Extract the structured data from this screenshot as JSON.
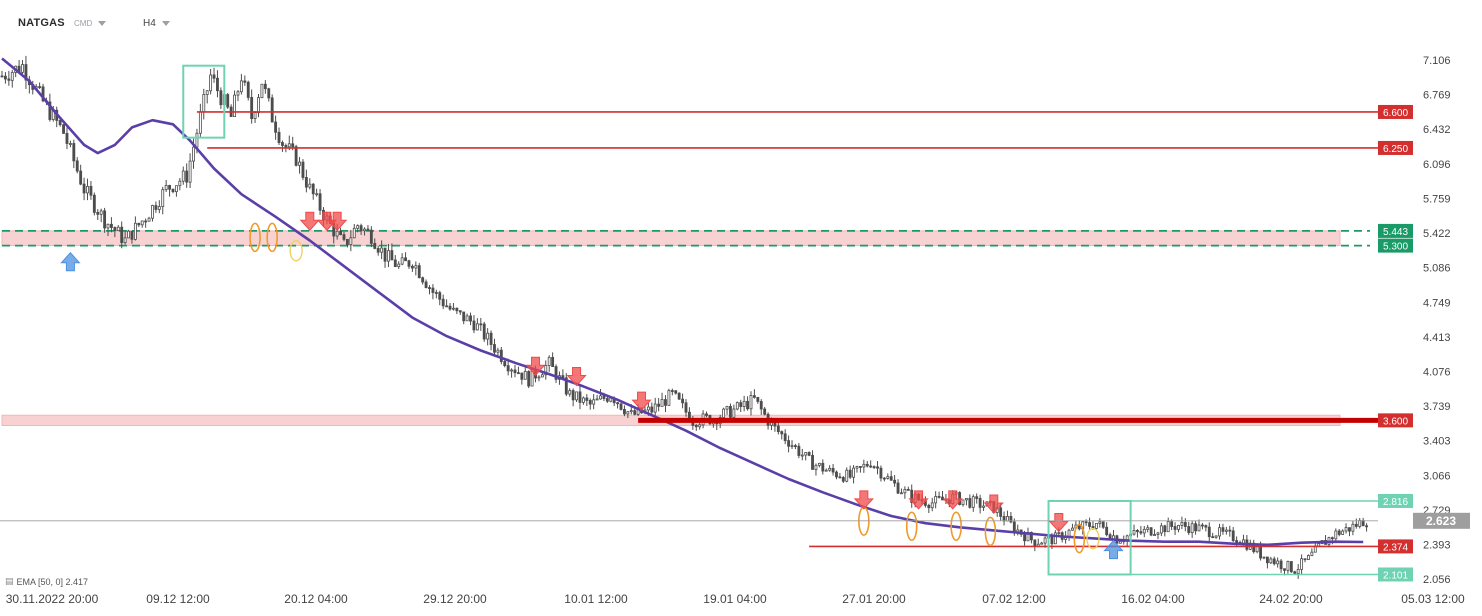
{
  "header": {
    "symbol": "NATGAS",
    "instrument_type": "CMD",
    "timeframe": "H4"
  },
  "indicator": {
    "label": "EMA [50, 0] 2.417",
    "icon": "layers-icon"
  },
  "colors": {
    "candle": "#4d4d4d",
    "ema": "#5b3fa8",
    "resistance": "#d32f2f",
    "zone_fill": "#f8d2d2",
    "support_dashed": "#1a9a66",
    "box": "#6fd3b3",
    "down_arrow": "#f04a4a",
    "up_arrow": "#4a90e2",
    "marker_orange": "#ef9a2a",
    "marker_yellow": "#f0d060",
    "current_price_bg": "#9e9e9e"
  },
  "chart_data": {
    "type": "candlestick",
    "price_axis": {
      "ticks": [
        "7.106",
        "6.769",
        "6.432",
        "6.096",
        "5.759",
        "5.422",
        "5.086",
        "4.749",
        "4.413",
        "4.076",
        "3.739",
        "3.403",
        "3.066",
        "2.729",
        "2.393",
        "2.056"
      ],
      "range": [
        1.95,
        7.3
      ]
    },
    "time_axis": {
      "ticks": [
        "30.11.2022 20:00",
        "09.12 12:00",
        "20.12 04:00",
        "29.12 20:00",
        "10.01 12:00",
        "19.01 04:00",
        "27.01 20:00",
        "07.02 12:00",
        "16.02 04:00",
        "24.02 20:00",
        "05.03 12:00"
      ]
    },
    "close_path": [
      [
        0,
        6.95
      ],
      [
        6,
        7.05
      ],
      [
        12,
        6.7
      ],
      [
        18,
        6.4
      ],
      [
        24,
        5.85
      ],
      [
        30,
        5.55
      ],
      [
        36,
        5.35
      ],
      [
        42,
        5.58
      ],
      [
        48,
        5.85
      ],
      [
        54,
        5.98
      ],
      [
        58,
        6.55
      ],
      [
        61,
        6.95
      ],
      [
        64,
        6.75
      ],
      [
        67,
        6.55
      ],
      [
        70,
        6.95
      ],
      [
        73,
        6.55
      ],
      [
        76,
        6.9
      ],
      [
        79,
        6.55
      ],
      [
        82,
        6.3
      ],
      [
        86,
        6.15
      ],
      [
        90,
        5.85
      ],
      [
        95,
        5.55
      ],
      [
        100,
        5.3
      ],
      [
        104,
        5.5
      ],
      [
        108,
        5.4
      ],
      [
        112,
        5.2
      ],
      [
        116,
        5.1
      ],
      [
        120,
        5.15
      ],
      [
        126,
        4.85
      ],
      [
        132,
        4.65
      ],
      [
        138,
        4.55
      ],
      [
        143,
        4.35
      ],
      [
        148,
        4.15
      ],
      [
        154,
        4.0
      ],
      [
        160,
        4.15
      ],
      [
        166,
        3.85
      ],
      [
        172,
        3.75
      ],
      [
        178,
        3.85
      ],
      [
        184,
        3.65
      ],
      [
        190,
        3.7
      ],
      [
        196,
        3.85
      ],
      [
        202,
        3.6
      ],
      [
        208,
        3.62
      ],
      [
        214,
        3.7
      ],
      [
        220,
        3.8
      ],
      [
        225,
        3.55
      ],
      [
        230,
        3.4
      ],
      [
        236,
        3.2
      ],
      [
        242,
        3.1
      ],
      [
        248,
        3.05
      ],
      [
        254,
        3.2
      ],
      [
        260,
        3.0
      ],
      [
        266,
        2.85
      ],
      [
        272,
        2.8
      ],
      [
        278,
        2.85
      ],
      [
        284,
        2.8
      ],
      [
        290,
        2.75
      ],
      [
        296,
        2.55
      ],
      [
        302,
        2.42
      ],
      [
        308,
        2.45
      ],
      [
        314,
        2.55
      ],
      [
        320,
        2.6
      ],
      [
        326,
        2.45
      ],
      [
        332,
        2.5
      ],
      [
        338,
        2.55
      ],
      [
        344,
        2.58
      ],
      [
        350,
        2.55
      ],
      [
        356,
        2.5
      ],
      [
        362,
        2.45
      ],
      [
        368,
        2.3
      ],
      [
        374,
        2.2
      ],
      [
        378,
        2.15
      ],
      [
        382,
        2.25
      ],
      [
        386,
        2.4
      ],
      [
        390,
        2.5
      ],
      [
        394,
        2.55
      ],
      [
        398,
        2.62
      ]
    ],
    "ema_50": [
      [
        0,
        7.12
      ],
      [
        8,
        6.9
      ],
      [
        16,
        6.58
      ],
      [
        24,
        6.28
      ],
      [
        28,
        6.2
      ],
      [
        33,
        6.28
      ],
      [
        38,
        6.45
      ],
      [
        44,
        6.52
      ],
      [
        50,
        6.48
      ],
      [
        55,
        6.32
      ],
      [
        62,
        6.05
      ],
      [
        70,
        5.8
      ],
      [
        80,
        5.58
      ],
      [
        90,
        5.35
      ],
      [
        100,
        5.1
      ],
      [
        110,
        4.85
      ],
      [
        120,
        4.6
      ],
      [
        130,
        4.42
      ],
      [
        140,
        4.28
      ],
      [
        150,
        4.16
      ],
      [
        160,
        4.05
      ],
      [
        170,
        3.93
      ],
      [
        180,
        3.8
      ],
      [
        190,
        3.65
      ],
      [
        200,
        3.5
      ],
      [
        210,
        3.33
      ],
      [
        220,
        3.18
      ],
      [
        230,
        3.03
      ],
      [
        240,
        2.9
      ],
      [
        250,
        2.78
      ],
      [
        260,
        2.67
      ],
      [
        270,
        2.6
      ],
      [
        280,
        2.56
      ],
      [
        290,
        2.53
      ],
      [
        300,
        2.5
      ],
      [
        310,
        2.47
      ],
      [
        320,
        2.45
      ],
      [
        330,
        2.43
      ],
      [
        340,
        2.42
      ],
      [
        350,
        2.42
      ],
      [
        360,
        2.4
      ],
      [
        370,
        2.39
      ],
      [
        380,
        2.41
      ],
      [
        390,
        2.42
      ],
      [
        398,
        2.417
      ]
    ],
    "horizontal_levels": [
      {
        "price": 6.6,
        "label": "6.600",
        "from": 57
      },
      {
        "price": 6.25,
        "label": "6.250",
        "from": 60
      },
      {
        "price": 3.6,
        "label": "3.600",
        "from": 186,
        "heavy": true
      },
      {
        "price": 2.374,
        "label": "2.374",
        "from": 236
      }
    ],
    "support_zones": [
      {
        "from": 5.3,
        "to": 5.443,
        "labels": [
          "5.443",
          "5.300"
        ],
        "dashed": true
      },
      {
        "from": 3.55,
        "to": 3.65
      }
    ],
    "range_box": {
      "top": 2.816,
      "bottom": 2.101,
      "labels": [
        "2.816",
        "2.101"
      ],
      "from": 306,
      "to": 330
    },
    "top_box": {
      "top": 7.05,
      "bottom": 6.35,
      "from": 53,
      "to": 65
    },
    "current_price": "2.623",
    "down_arrows": [
      [
        90,
        5.43
      ],
      [
        95,
        5.43
      ],
      [
        98,
        5.43
      ],
      [
        156,
        4.02
      ],
      [
        168,
        3.92
      ],
      [
        187,
        3.68
      ],
      [
        252,
        2.72
      ],
      [
        268,
        2.72
      ],
      [
        278,
        2.72
      ],
      [
        290,
        2.68
      ],
      [
        309,
        2.5
      ]
    ],
    "up_arrows": [
      [
        20,
        5.25
      ],
      [
        325,
        2.45
      ]
    ],
    "orange_marks": [
      [
        74,
        5.38
      ],
      [
        79,
        5.38
      ],
      [
        252,
        2.62
      ],
      [
        266,
        2.57
      ],
      [
        279,
        2.57
      ],
      [
        289,
        2.52
      ],
      [
        315,
        2.45
      ]
    ],
    "yellow_marks": [
      [
        86,
        5.25
      ],
      [
        319,
        2.45
      ]
    ]
  }
}
